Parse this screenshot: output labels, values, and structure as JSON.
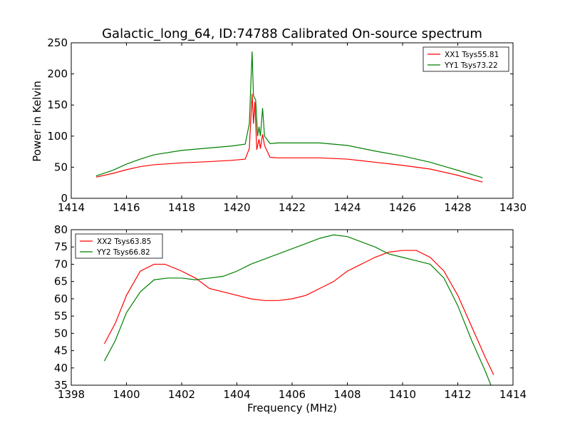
{
  "chart_data": [
    {
      "type": "line",
      "title": "Galactic_long_64, ID:74788 Calibrated On-source spectrum",
      "xlabel": "",
      "ylabel": "Power in Kelvin",
      "xlim": [
        1414,
        1430
      ],
      "ylim": [
        0,
        250
      ],
      "xticks": [
        1414,
        1416,
        1418,
        1420,
        1422,
        1424,
        1426,
        1428,
        1430
      ],
      "yticks": [
        0,
        50,
        100,
        150,
        200,
        250
      ],
      "grid": false,
      "legend_position": "top-right",
      "series": [
        {
          "name": "XX1 Tsys55.81",
          "color": "#ff0000",
          "points": [
            [
              1414.9,
              34
            ],
            [
              1415.5,
              40
            ],
            [
              1416,
              46
            ],
            [
              1416.5,
              51
            ],
            [
              1417,
              54
            ],
            [
              1418,
              57
            ],
            [
              1419,
              59
            ],
            [
              1419.8,
              61
            ],
            [
              1420.3,
              63
            ],
            [
              1420.45,
              80
            ],
            [
              1420.55,
              168
            ],
            [
              1420.6,
              120
            ],
            [
              1420.65,
              155
            ],
            [
              1420.72,
              78
            ],
            [
              1420.8,
              95
            ],
            [
              1420.85,
              80
            ],
            [
              1420.93,
              103
            ],
            [
              1421.0,
              85
            ],
            [
              1421.2,
              66
            ],
            [
              1421.5,
              65
            ],
            [
              1422,
              65
            ],
            [
              1423,
              65
            ],
            [
              1424,
              63
            ],
            [
              1425,
              58
            ],
            [
              1426,
              53
            ],
            [
              1427,
              47
            ],
            [
              1428,
              37
            ],
            [
              1428.9,
              26
            ]
          ]
        },
        {
          "name": "YY1 Tsys73.22",
          "color": "#008000",
          "points": [
            [
              1414.9,
              36
            ],
            [
              1415.5,
              45
            ],
            [
              1416,
              55
            ],
            [
              1416.5,
              63
            ],
            [
              1417,
              70
            ],
            [
              1418,
              77
            ],
            [
              1419,
              81
            ],
            [
              1419.8,
              84
            ],
            [
              1420.3,
              87
            ],
            [
              1420.45,
              120
            ],
            [
              1420.55,
              236
            ],
            [
              1420.6,
              165
            ],
            [
              1420.68,
              158
            ],
            [
              1420.75,
              100
            ],
            [
              1420.8,
              115
            ],
            [
              1420.85,
              100
            ],
            [
              1420.93,
              145
            ],
            [
              1421.0,
              100
            ],
            [
              1421.2,
              88
            ],
            [
              1421.5,
              89
            ],
            [
              1422,
              89
            ],
            [
              1423,
              89
            ],
            [
              1424,
              85
            ],
            [
              1425,
              76
            ],
            [
              1426,
              68
            ],
            [
              1427,
              58
            ],
            [
              1428,
              45
            ],
            [
              1428.9,
              33
            ]
          ]
        }
      ]
    },
    {
      "type": "line",
      "title": "",
      "xlabel": "Frequency (MHz)",
      "ylabel": "",
      "xlim": [
        1398,
        1414
      ],
      "ylim": [
        35,
        80
      ],
      "xticks": [
        1398,
        1400,
        1402,
        1404,
        1406,
        1408,
        1410,
        1412,
        1414
      ],
      "yticks": [
        35,
        40,
        45,
        50,
        55,
        60,
        65,
        70,
        75,
        80
      ],
      "grid": false,
      "legend_position": "top-left",
      "series": [
        {
          "name": "XX2 Tsys63.85",
          "color": "#ff0000",
          "points": [
            [
              1399.2,
              47
            ],
            [
              1399.6,
              53
            ],
            [
              1400,
              61
            ],
            [
              1400.5,
              68
            ],
            [
              1401,
              70
            ],
            [
              1401.4,
              70
            ],
            [
              1402,
              68
            ],
            [
              1402.5,
              66
            ],
            [
              1403,
              63
            ],
            [
              1403.5,
              62
            ],
            [
              1404,
              61
            ],
            [
              1404.5,
              60
            ],
            [
              1405,
              59.5
            ],
            [
              1405.5,
              59.5
            ],
            [
              1406,
              60
            ],
            [
              1406.5,
              61
            ],
            [
              1407,
              63
            ],
            [
              1407.5,
              65
            ],
            [
              1408,
              68
            ],
            [
              1408.5,
              70
            ],
            [
              1409,
              72
            ],
            [
              1409.5,
              73.5
            ],
            [
              1410,
              74
            ],
            [
              1410.5,
              74
            ],
            [
              1411,
              72
            ],
            [
              1411.5,
              68
            ],
            [
              1412,
              61
            ],
            [
              1412.5,
              52
            ],
            [
              1413,
              43
            ],
            [
              1413.3,
              38
            ]
          ]
        },
        {
          "name": "YY2 Tsys66.82",
          "color": "#008000",
          "points": [
            [
              1399.2,
              42
            ],
            [
              1399.6,
              48
            ],
            [
              1400,
              56
            ],
            [
              1400.5,
              62
            ],
            [
              1401,
              65.5
            ],
            [
              1401.5,
              66
            ],
            [
              1402,
              66
            ],
            [
              1402.5,
              65.5
            ],
            [
              1403,
              66
            ],
            [
              1403.5,
              66.5
            ],
            [
              1404,
              68
            ],
            [
              1404.5,
              70
            ],
            [
              1405,
              71.5
            ],
            [
              1405.5,
              73
            ],
            [
              1406,
              74.5
            ],
            [
              1406.5,
              76
            ],
            [
              1407,
              77.5
            ],
            [
              1407.5,
              78.5
            ],
            [
              1408,
              78
            ],
            [
              1408.5,
              76.5
            ],
            [
              1409,
              75
            ],
            [
              1409.5,
              73
            ],
            [
              1410,
              72
            ],
            [
              1410.5,
              71
            ],
            [
              1411,
              70
            ],
            [
              1411.5,
              66
            ],
            [
              1412,
              58
            ],
            [
              1412.5,
              48
            ],
            [
              1413,
              39
            ],
            [
              1413.2,
              35
            ]
          ]
        }
      ]
    }
  ]
}
